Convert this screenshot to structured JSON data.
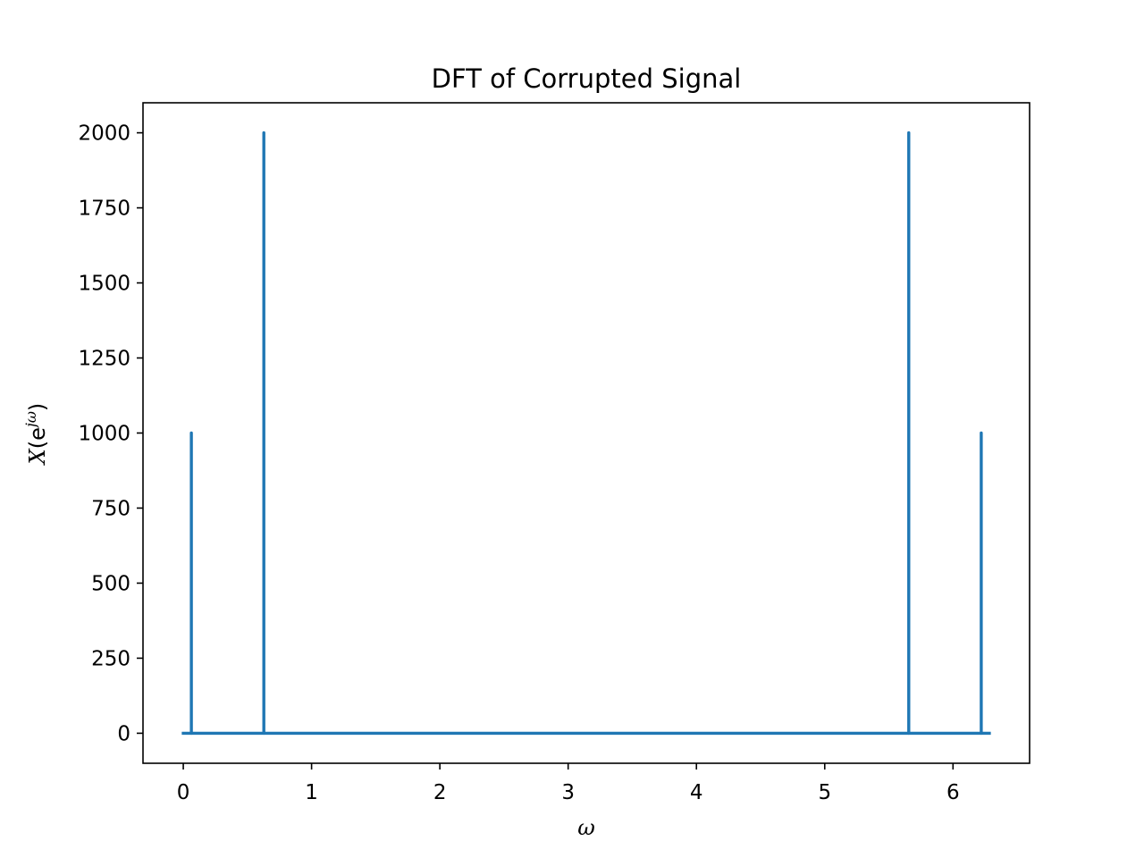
{
  "chart_data": {
    "type": "line",
    "title": "DFT of Corrupted Signal",
    "xlabel": "ω",
    "ylabel": {
      "base": "X",
      "open": "(e",
      "superscript": "jω",
      "close": ")"
    },
    "xlim": [
      -0.314,
      6.597
    ],
    "ylim": [
      -100,
      2100
    ],
    "xticks": [
      0,
      1,
      2,
      3,
      4,
      5,
      6
    ],
    "yticks": [
      0,
      250,
      500,
      750,
      1000,
      1250,
      1500,
      1750,
      2000
    ],
    "grid": false,
    "series_color": "#1f77b4",
    "x_range": [
      0,
      6.283
    ],
    "baseline": 0,
    "spikes": [
      {
        "x": 0.063,
        "y": 1000
      },
      {
        "x": 0.628,
        "y": 2000
      },
      {
        "x": 5.655,
        "y": 2000
      },
      {
        "x": 6.22,
        "y": 1000
      }
    ]
  }
}
